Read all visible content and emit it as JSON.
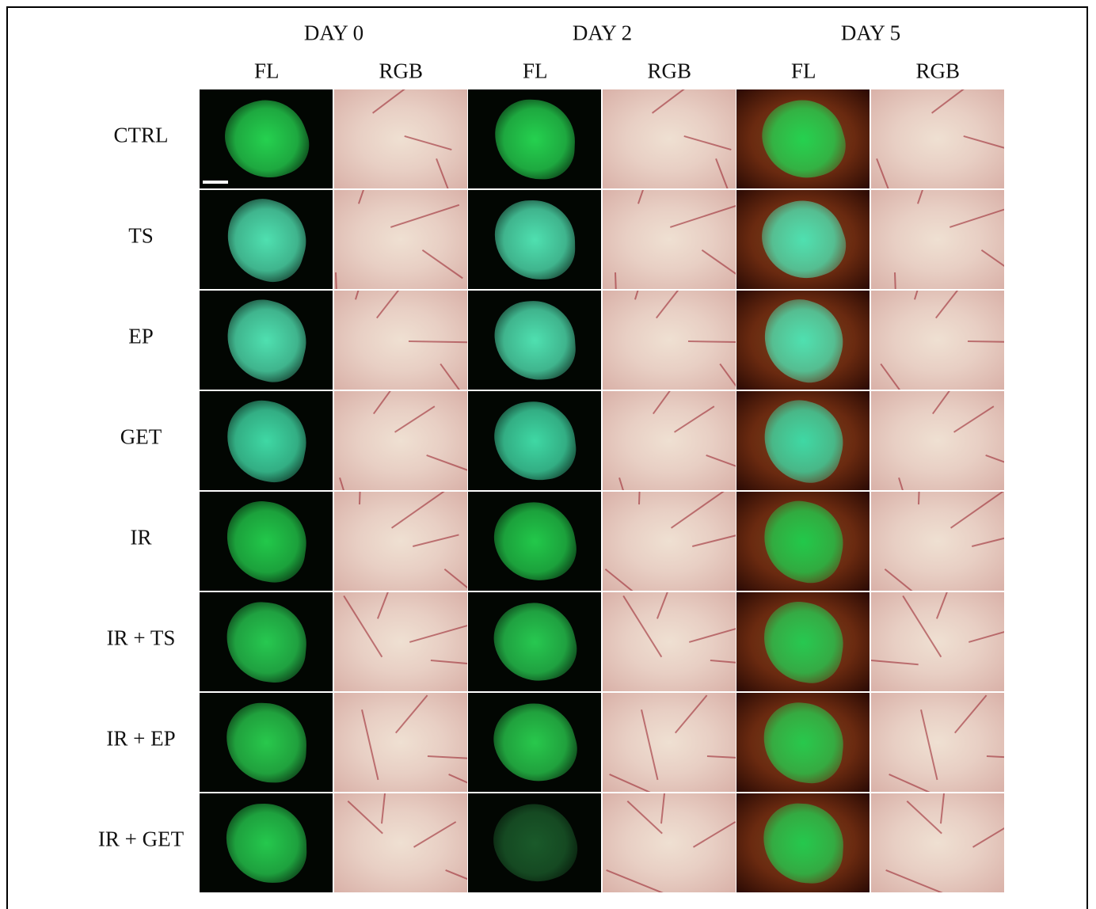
{
  "headers": {
    "days": [
      "DAY 0",
      "DAY 2",
      "DAY 5"
    ],
    "channels": [
      "FL",
      "RGB",
      "FL",
      "RGB",
      "FL",
      "RGB"
    ]
  },
  "rows": [
    "CTRL",
    "TS",
    "EP",
    "GET",
    "IR",
    "IR + TS",
    "IR + EP",
    "IR + GET"
  ]
}
